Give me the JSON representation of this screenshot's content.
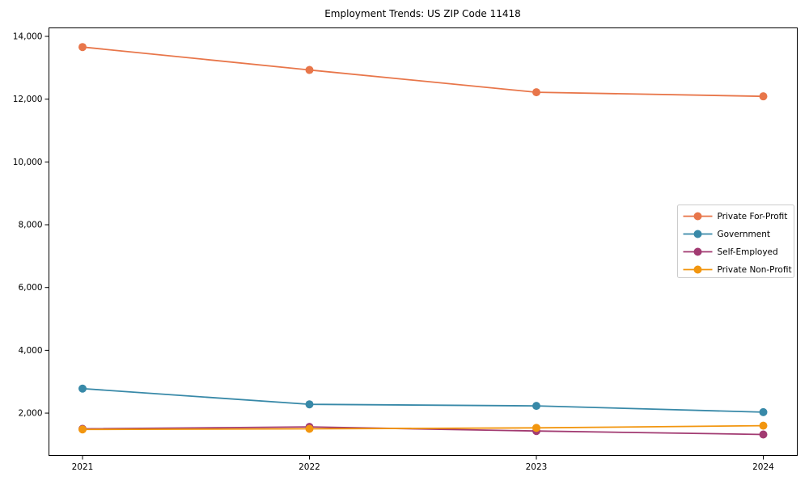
{
  "chart_data": {
    "type": "line",
    "title": "Employment Trends: US ZIP Code 11418",
    "xlabel": "",
    "ylabel": "",
    "grid": false,
    "legend_position": "center-right",
    "x": [
      "2021",
      "2022",
      "2023",
      "2024"
    ],
    "series": [
      {
        "name": "Private For-Profit",
        "color": "#E8764A",
        "values": [
          13660,
          12930,
          12220,
          12090
        ]
      },
      {
        "name": "Government",
        "color": "#3889A8",
        "values": [
          2780,
          2280,
          2230,
          2030
        ]
      },
      {
        "name": "Self-Employed",
        "color": "#A23B72",
        "values": [
          1500,
          1560,
          1430,
          1320
        ]
      },
      {
        "name": "Private Non-Profit",
        "color": "#F2960F",
        "values": [
          1480,
          1500,
          1530,
          1600
        ]
      }
    ],
    "yticks": [
      2000,
      4000,
      6000,
      8000,
      10000,
      12000,
      14000
    ],
    "ytick_labels": [
      "2,000",
      "4,000",
      "6,000",
      "8,000",
      "10,000",
      "12,000",
      "14,000"
    ],
    "ylim": [
      650,
      14270
    ]
  }
}
